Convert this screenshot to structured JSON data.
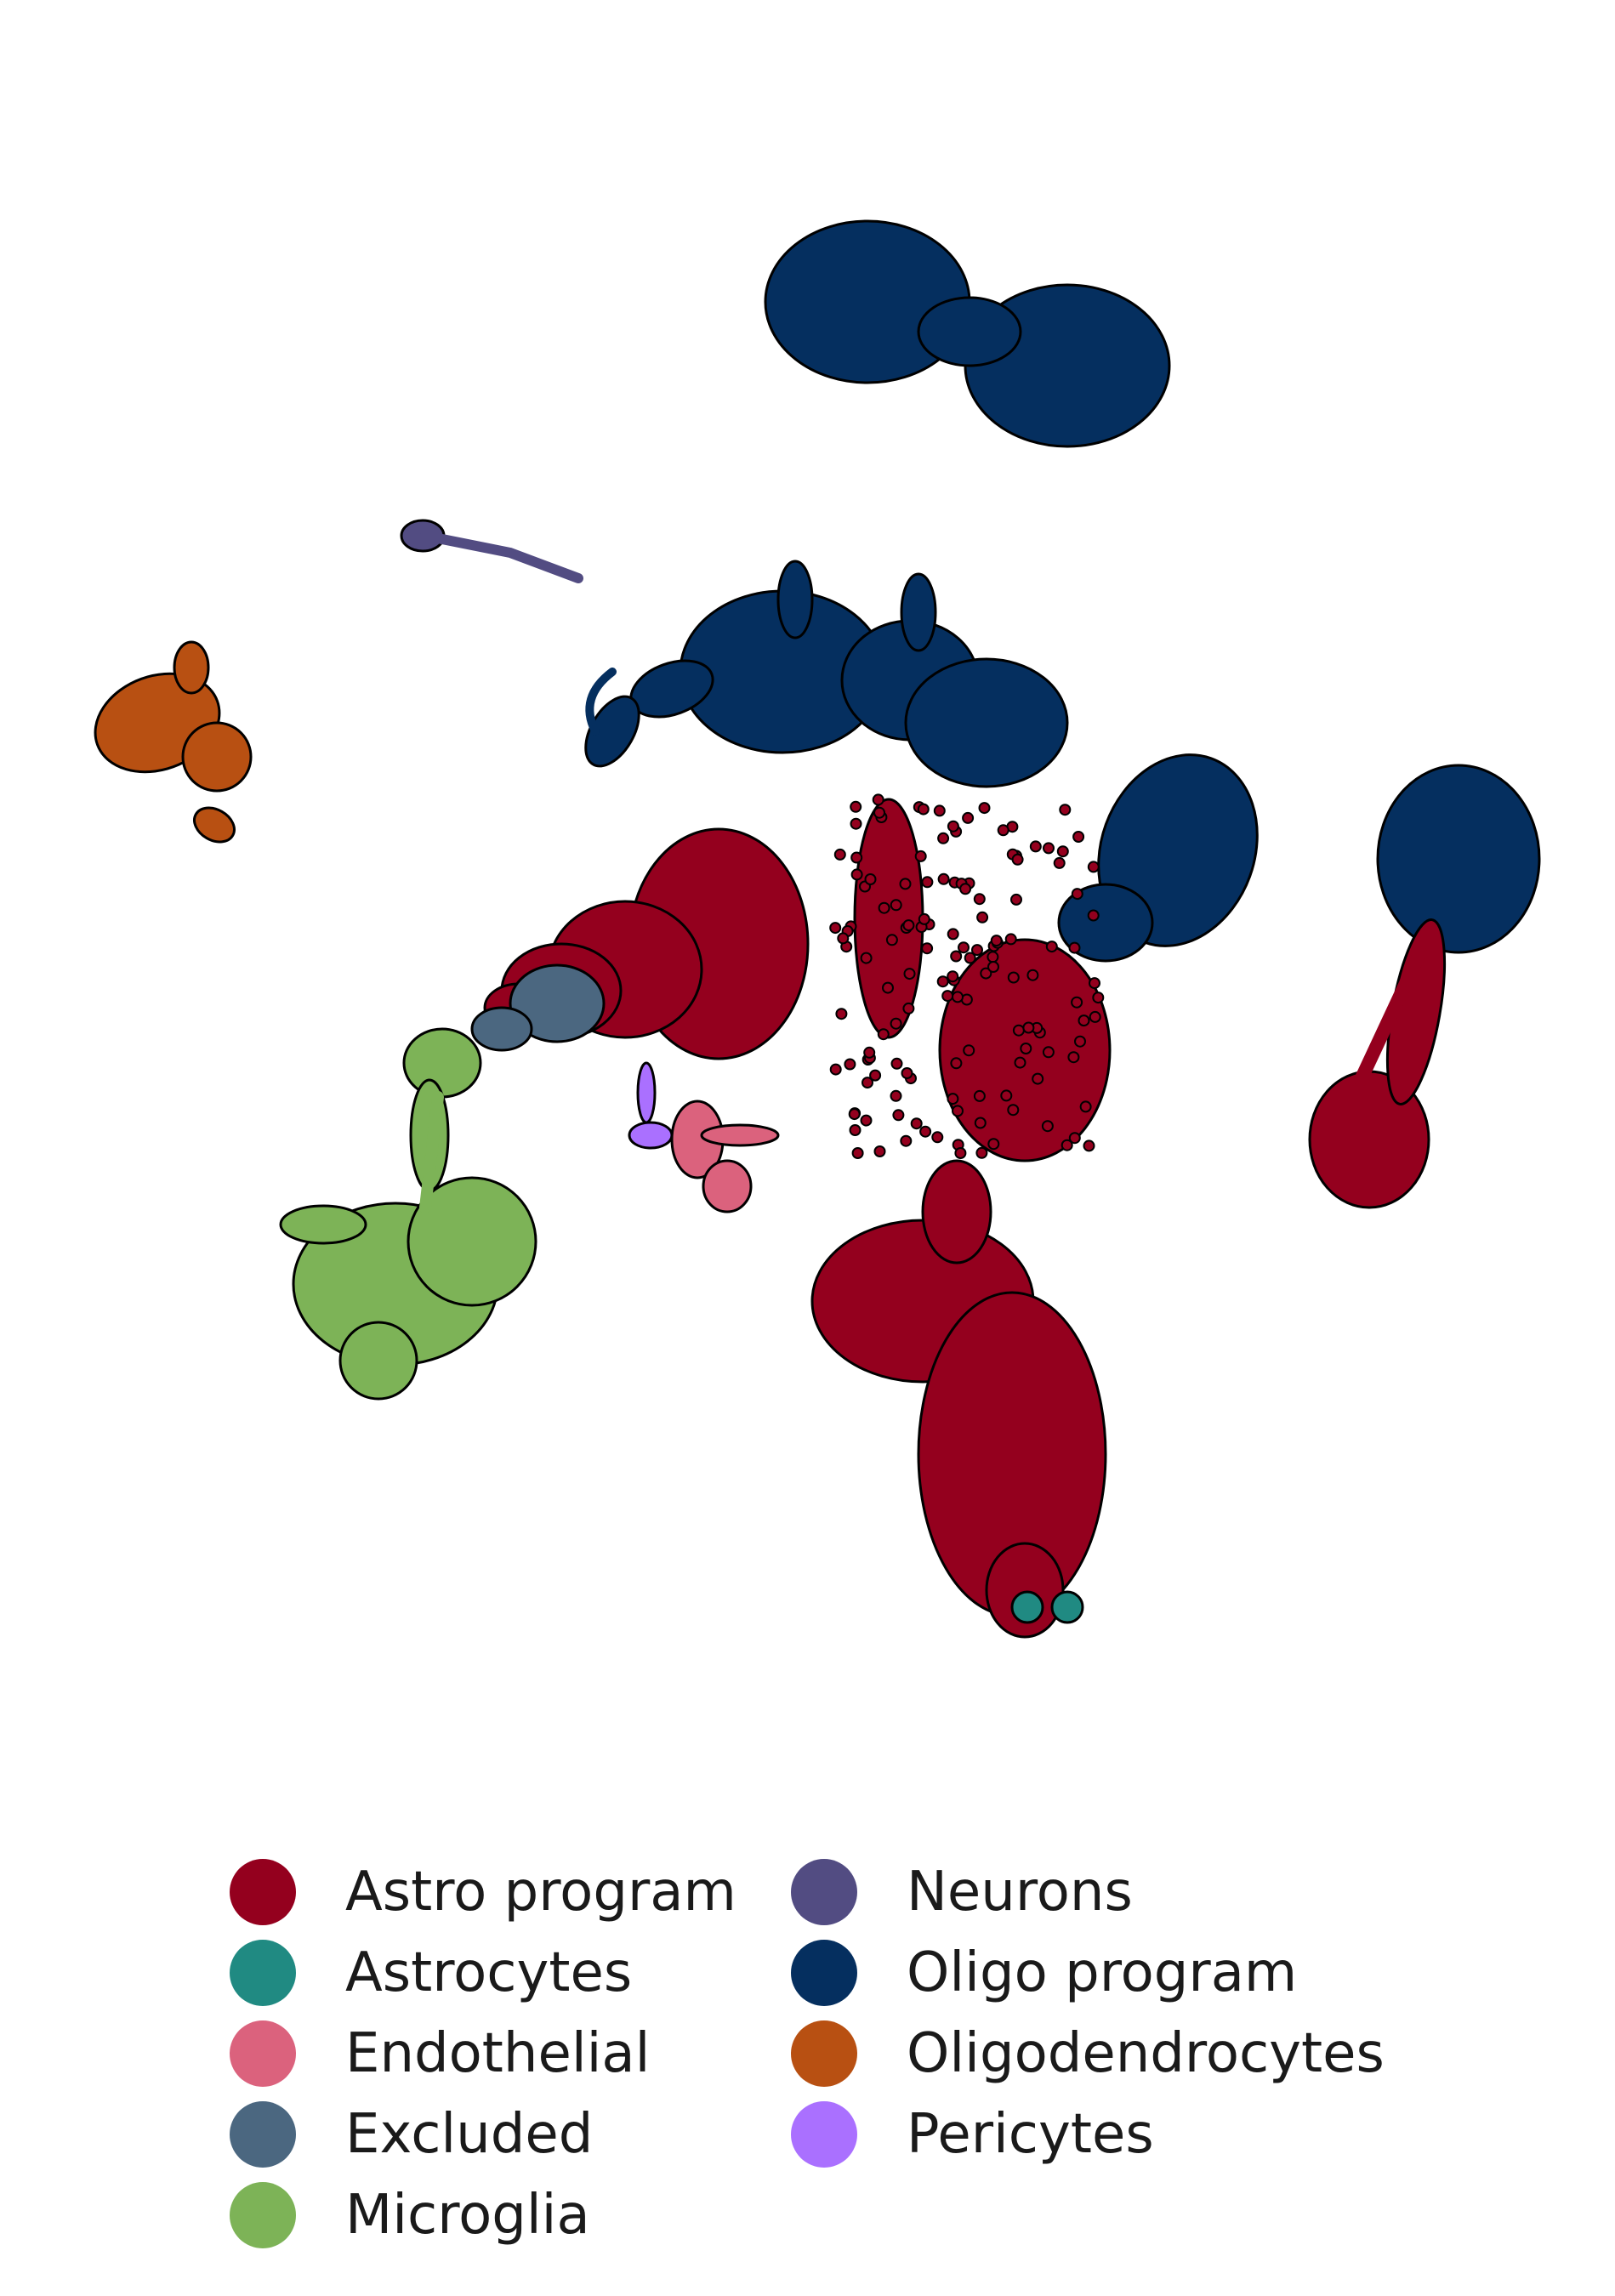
{
  "chart_data": {
    "type": "scatter",
    "title": "",
    "xlabel": "",
    "ylabel": "",
    "axes_visible": false,
    "grid": false,
    "legend_placement": "bottom",
    "legend_columns": 2,
    "marker": "filled circle with black edge",
    "series": [
      {
        "name": "Astro program",
        "color": "#94001E"
      },
      {
        "name": "Astrocytes",
        "color": "#208A82"
      },
      {
        "name": "Endothelial",
        "color": "#DB627D"
      },
      {
        "name": "Excluded",
        "color": "#4B6780"
      },
      {
        "name": "Microglia",
        "color": "#7DB357"
      },
      {
        "name": "Neurons",
        "color": "#524C82"
      },
      {
        "name": "Oligo program",
        "color": "#052F5F"
      },
      {
        "name": "Oligodendrocytes",
        "color": "#B85012"
      },
      {
        "name": "Pericytes",
        "color": "#AA70FF"
      }
    ]
  }
}
